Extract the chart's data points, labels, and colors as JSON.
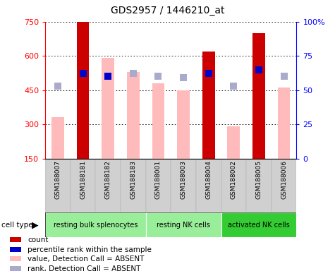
{
  "title": "GDS2957 / 1446210_at",
  "samples": [
    "GSM188007",
    "GSM188181",
    "GSM188182",
    "GSM188183",
    "GSM188001",
    "GSM188003",
    "GSM188004",
    "GSM188002",
    "GSM188005",
    "GSM188006"
  ],
  "ct_groups": [
    {
      "label": "resting bulk splenocytes",
      "start": 0,
      "end": 4,
      "color": "#99ee99"
    },
    {
      "label": "resting NK cells",
      "start": 4,
      "end": 7,
      "color": "#99ee99"
    },
    {
      "label": "activated NK cells",
      "start": 7,
      "end": 10,
      "color": "#33cc33"
    }
  ],
  "value_bars": [
    330,
    750,
    590,
    530,
    480,
    450,
    620,
    290,
    700,
    460
  ],
  "value_bar_absent": [
    true,
    false,
    true,
    true,
    true,
    true,
    false,
    true,
    false,
    true
  ],
  "percentile_vals": [
    53,
    62,
    60,
    62,
    60,
    59,
    62,
    53,
    65,
    60
  ],
  "percentile_absent": [
    true,
    false,
    false,
    true,
    true,
    true,
    false,
    true,
    false,
    true
  ],
  "ylim_left": [
    150,
    750
  ],
  "ylim_right": [
    0,
    100
  ],
  "yticks_left": [
    150,
    300,
    450,
    600,
    750
  ],
  "ytick_labels_left": [
    "150",
    "300",
    "450",
    "600",
    "750"
  ],
  "yticks_right": [
    0,
    25,
    50,
    75,
    100
  ],
  "ytick_labels_right": [
    "0",
    "25",
    "50",
    "75",
    "100%"
  ],
  "value_color_present": "#cc0000",
  "value_color_absent": "#ffbbbb",
  "percentile_color_present": "#0000cc",
  "percentile_color_absent": "#aaaacc",
  "bar_width": 0.5,
  "legend_items": [
    {
      "color": "#cc0000",
      "label": "count"
    },
    {
      "color": "#0000cc",
      "label": "percentile rank within the sample"
    },
    {
      "color": "#ffbbbb",
      "label": "value, Detection Call = ABSENT"
    },
    {
      "color": "#aaaacc",
      "label": "rank, Detection Call = ABSENT"
    }
  ]
}
